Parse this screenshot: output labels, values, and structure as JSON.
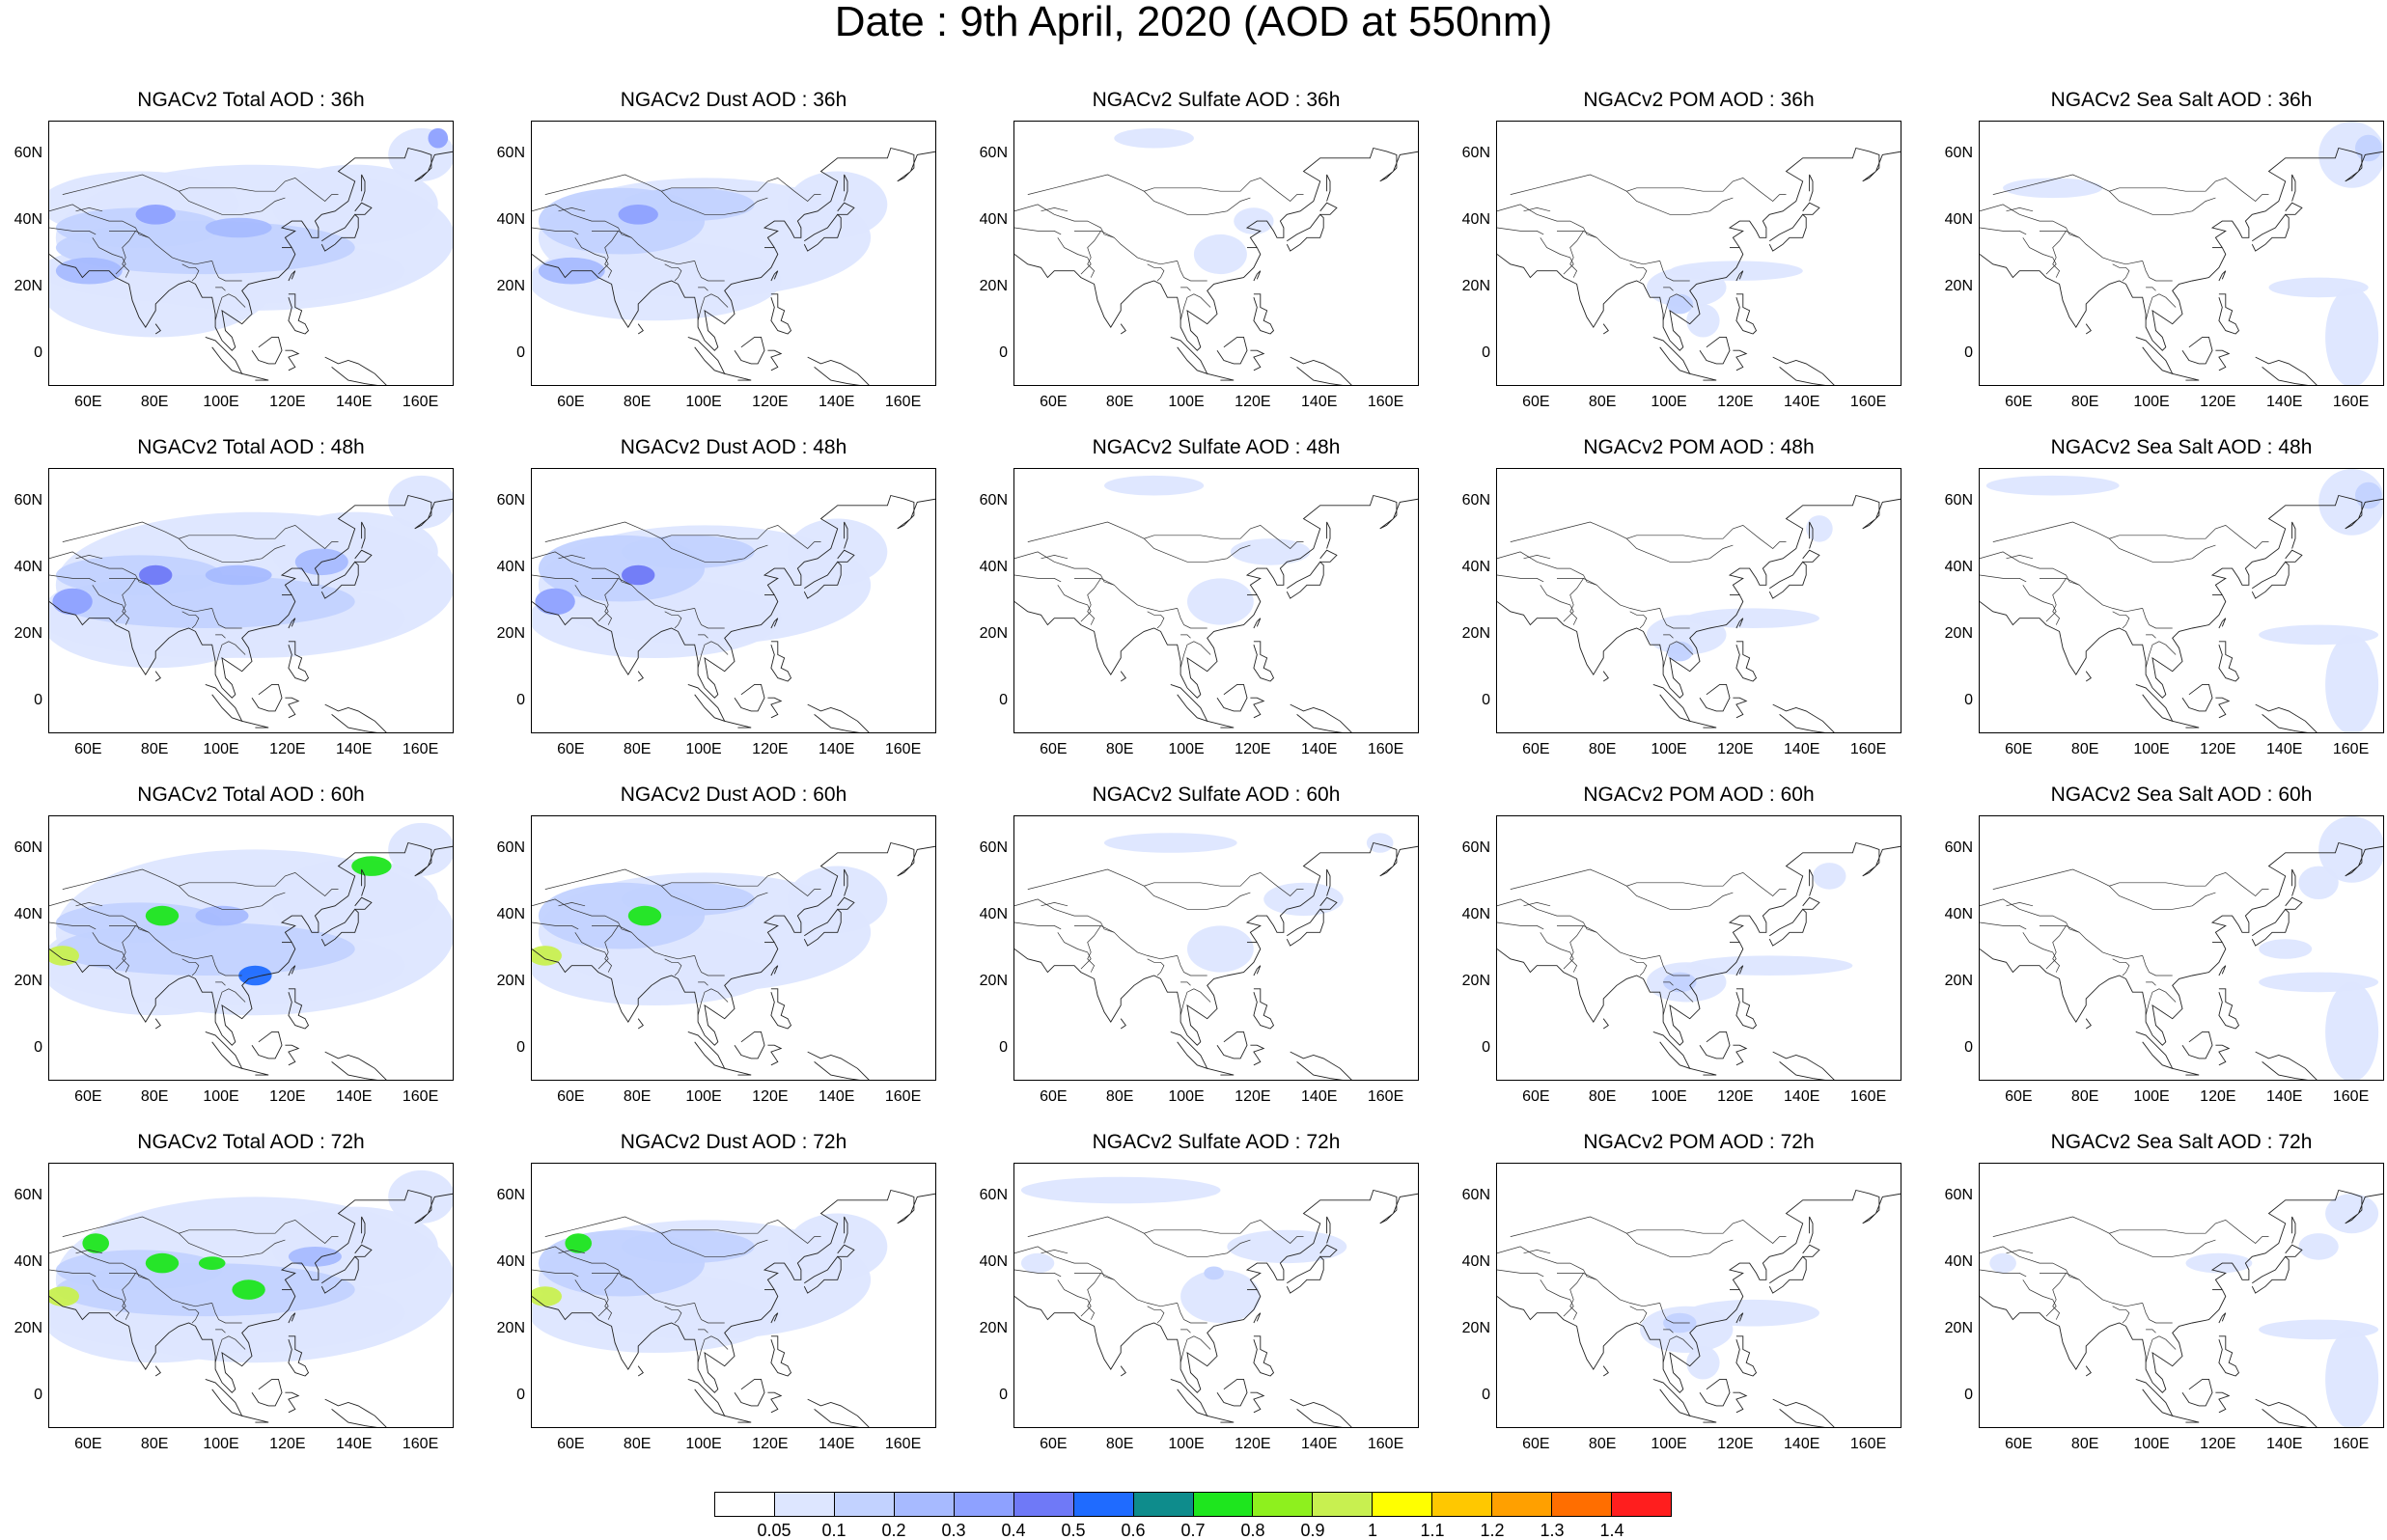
{
  "title": "Date : 9th April, 2020 (AOD at 550nm)",
  "axes": {
    "lat_ticks": [
      "60N",
      "40N",
      "20N",
      "0"
    ],
    "lon_ticks": [
      "60E",
      "80E",
      "100E",
      "120E",
      "140E",
      "160E"
    ]
  },
  "rows": [
    {
      "titles": [
        "NGACv2 Total AOD : 36h",
        "NGACv2 Dust AOD : 36h",
        "NGACv2 Sulfate AOD : 36h",
        "NGACv2 POM AOD : 36h",
        "NGACv2 Sea Salt AOD : 36h"
      ]
    },
    {
      "titles": [
        "NGACv2 Total AOD : 48h",
        "NGACv2 Dust AOD : 48h",
        "NGACv2 Sulfate AOD : 48h",
        "NGACv2 POM AOD : 48h",
        "NGACv2 Sea Salt AOD : 48h"
      ]
    },
    {
      "titles": [
        "NGACv2 Total AOD : 60h",
        "NGACv2 Dust AOD : 60h",
        "NGACv2 Sulfate AOD : 60h",
        "NGACv2 POM AOD : 60h",
        "NGACv2 Sea Salt AOD : 60h"
      ]
    },
    {
      "titles": [
        "NGACv2 Total AOD : 72h",
        "NGACv2 Dust AOD : 72h",
        "NGACv2 Sulfate AOD : 72h",
        "NGACv2 POM AOD : 72h",
        "NGACv2 Sea Salt  AOD : 72h"
      ]
    }
  ],
  "colorbar": {
    "labels": [
      "0.05",
      "0.1",
      "0.2",
      "0.3",
      "0.4",
      "0.5",
      "0.6",
      "0.7",
      "0.8",
      "0.9",
      "1",
      "1.1",
      "1.2",
      "1.3",
      "1.4"
    ],
    "colors": [
      "#ffffff",
      "#dde6ff",
      "#c2d2ff",
      "#a7baff",
      "#8ea1ff",
      "#6f79f7",
      "#1f6bff",
      "#0e8c8c",
      "#1ee61e",
      "#8ef01e",
      "#c8f050",
      "#ffff00",
      "#ffc800",
      "#ffa000",
      "#ff6e00",
      "#ff1e1e"
    ]
  }
}
